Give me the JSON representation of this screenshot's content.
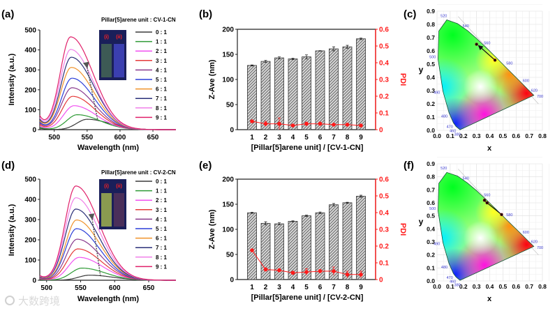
{
  "figure": {
    "watermark": "大数跨境",
    "panel_labels": [
      "(a)",
      "(b)",
      "(c)",
      "(d)",
      "(e)",
      "(f)"
    ]
  },
  "chart_data": [
    {
      "id": "a",
      "type": "line",
      "title": "Pillar[5]arene unit : CV-1-CN",
      "xlabel": "Wavelength (nm)",
      "ylabel": "Intensity (a.u.)",
      "xlim": [
        478,
        685
      ],
      "ylim": [
        0,
        500
      ],
      "xticks": [
        500,
        550,
        600,
        650
      ],
      "yticks": [
        0,
        100,
        200,
        300,
        400,
        500
      ],
      "inset_labels": [
        "(i)",
        "(ii)"
      ],
      "series": [
        {
          "name": "0 : 1",
          "color": "#3a3a3a",
          "peak_wavelength": 550,
          "peak_intensity": 52,
          "tail": 8
        },
        {
          "name": "1 : 1",
          "color": "#2e9a35",
          "peak_wavelength": 535,
          "peak_intensity": 75,
          "tail": 12
        },
        {
          "name": "2 : 1",
          "color": "#f050f0",
          "peak_wavelength": 530,
          "peak_intensity": 120,
          "tail": 18
        },
        {
          "name": "3 : 1",
          "color": "#e53a3a",
          "peak_wavelength": 528,
          "peak_intensity": 167,
          "tail": 24
        },
        {
          "name": "4 : 1",
          "color": "#8a3a8e",
          "peak_wavelength": 527,
          "peak_intensity": 210,
          "tail": 30
        },
        {
          "name": "5 : 1",
          "color": "#2c3fd8",
          "peak_wavelength": 527,
          "peak_intensity": 258,
          "tail": 36
        },
        {
          "name": "6 : 1",
          "color": "#f0922a",
          "peak_wavelength": 526,
          "peak_intensity": 312,
          "tail": 42
        },
        {
          "name": "7 : 1",
          "color": "#2a2f78",
          "peak_wavelength": 526,
          "peak_intensity": 363,
          "tail": 48
        },
        {
          "name": "8 : 1",
          "color": "#f080e8",
          "peak_wavelength": 525,
          "peak_intensity": 402,
          "tail": 55
        },
        {
          "name": "9 : 1",
          "color": "#e0206a",
          "peak_wavelength": 525,
          "peak_intensity": 465,
          "tail": 65
        }
      ]
    },
    {
      "id": "b",
      "type": "bar",
      "xlabel": "[Pillar[5]arene unit] / [CV-1-CN]",
      "ylabel": "Z-Ave (nm)",
      "y2label": "PDI",
      "categories": [
        "1",
        "2",
        "3",
        "4",
        "5",
        "6",
        "7",
        "8",
        "9"
      ],
      "ylim": [
        0,
        200
      ],
      "yticks": [
        0,
        50,
        100,
        150,
        200
      ],
      "y2lim": [
        0,
        0.6
      ],
      "y2ticks": [
        "0",
        "0.1",
        "0.2",
        "0.3",
        "0.4",
        "0.5",
        "0.6"
      ],
      "z_ave": [
        128,
        136,
        143,
        141,
        145,
        157,
        161,
        165,
        181
      ],
      "z_ave_err": [
        1,
        2,
        2,
        1.5,
        4,
        0.5,
        4,
        3,
        1.5
      ],
      "pdi": [
        0.05,
        0.035,
        0.035,
        0.025,
        0.035,
        0.035,
        0.03,
        0.03,
        0.025
      ],
      "pdi_err": [
        0.005,
        0.015,
        0.035,
        0.005,
        0.01,
        0.01,
        0.005,
        0.005,
        0.005
      ],
      "pdi_color": "#ff1a1a"
    },
    {
      "id": "c",
      "type": "scatter",
      "title": "CIE 1931 chromaticity",
      "xlabel": "x",
      "ylabel": "y",
      "xlim": [
        0,
        0.8
      ],
      "ylim": [
        0,
        0.9
      ],
      "xticks": [
        "0.0",
        "0.1",
        "0.2",
        "0.3",
        "0.4",
        "0.5",
        "0.6",
        "0.7",
        "0.8"
      ],
      "yticks": [
        "0.0",
        "0.1",
        "0.2",
        "0.3",
        "0.4",
        "0.5",
        "0.6",
        "0.7",
        "0.8",
        "0.9"
      ],
      "wavelength_labels": [
        "380",
        "460",
        "470",
        "480",
        "490",
        "500",
        "520",
        "540",
        "560",
        "580",
        "600",
        "620",
        "700"
      ],
      "points": [
        [
          0.44,
          0.53
        ],
        [
          0.3,
          0.65
        ]
      ],
      "arrow": true
    },
    {
      "id": "d",
      "type": "line",
      "title": "Pillar[5]arene unit : CV-2-CN",
      "xlabel": "Wavelength (nm)",
      "ylabel": "Intensity (a.u.)",
      "xlim": [
        490,
        690
      ],
      "ylim": [
        0,
        500
      ],
      "xticks": [
        500,
        550,
        600,
        650
      ],
      "yticks": [
        0,
        100,
        200,
        300,
        400,
        500
      ],
      "inset_labels": [
        "(i)",
        "(ii)"
      ],
      "series": [
        {
          "name": "0 : 1",
          "color": "#3a3a3a",
          "peak_wavelength": 563,
          "peak_intensity": 25,
          "tail": 3
        },
        {
          "name": "1 : 1",
          "color": "#2e9a35",
          "peak_wavelength": 552,
          "peak_intensity": 60,
          "tail": 5
        },
        {
          "name": "2 : 1",
          "color": "#f050f0",
          "peak_wavelength": 548,
          "peak_intensity": 113,
          "tail": 8
        },
        {
          "name": "3 : 1",
          "color": "#e53a3a",
          "peak_wavelength": 546,
          "peak_intensity": 155,
          "tail": 10
        },
        {
          "name": "4 : 1",
          "color": "#8a3a8e",
          "peak_wavelength": 545,
          "peak_intensity": 203,
          "tail": 12
        },
        {
          "name": "5 : 1",
          "color": "#2c3fd8",
          "peak_wavelength": 544,
          "peak_intensity": 255,
          "tail": 14
        },
        {
          "name": "6 : 1",
          "color": "#f0922a",
          "peak_wavelength": 544,
          "peak_intensity": 298,
          "tail": 16
        },
        {
          "name": "7 : 1",
          "color": "#2a2f78",
          "peak_wavelength": 543,
          "peak_intensity": 352,
          "tail": 18
        },
        {
          "name": "8 : 1",
          "color": "#f080e8",
          "peak_wavelength": 543,
          "peak_intensity": 408,
          "tail": 20
        },
        {
          "name": "9 : 1",
          "color": "#e0206a",
          "peak_wavelength": 543,
          "peak_intensity": 466,
          "tail": 22
        }
      ]
    },
    {
      "id": "e",
      "type": "bar",
      "xlabel": "[Pillar[5]arene unit] / [CV-2-CN]",
      "ylabel": "Z-Ave (nm)",
      "y2label": "PDI",
      "categories": [
        "1",
        "2",
        "3",
        "4",
        "5",
        "6",
        "7",
        "8",
        "9"
      ],
      "ylim": [
        0,
        200
      ],
      "yticks": [
        0,
        50,
        100,
        150,
        200
      ],
      "y2lim": [
        0,
        0.6
      ],
      "y2ticks": [
        "0",
        "0.1",
        "0.2",
        "0.3",
        "0.4",
        "0.5",
        "0.6"
      ],
      "z_ave": [
        133,
        112,
        111,
        116,
        127,
        133,
        149,
        153,
        166
      ],
      "z_ave_err": [
        1,
        3,
        2,
        1,
        1.5,
        1.5,
        2.5,
        1,
        2
      ],
      "pdi": [
        0.175,
        0.06,
        0.055,
        0.04,
        0.045,
        0.05,
        0.05,
        0.03,
        0.03
      ],
      "pdi_err": [
        0.005,
        0.01,
        0.01,
        0.01,
        0.02,
        0.01,
        0.025,
        0.02,
        0.02
      ],
      "pdi_color": "#ff1a1a"
    },
    {
      "id": "f",
      "type": "scatter",
      "title": "CIE 1931 chromaticity",
      "xlabel": "x",
      "ylabel": "y",
      "xlim": [
        0,
        0.8
      ],
      "ylim": [
        0,
        0.9
      ],
      "xticks": [
        "0.0",
        "0.1",
        "0.2",
        "0.3",
        "0.4",
        "0.5",
        "0.6",
        "0.7",
        "0.8"
      ],
      "yticks": [
        "0.0",
        "0.1",
        "0.2",
        "0.3",
        "0.4",
        "0.5",
        "0.6",
        "0.7",
        "0.8",
        "0.9"
      ],
      "wavelength_labels": [
        "380",
        "460",
        "470",
        "480",
        "490",
        "500",
        "520",
        "540",
        "560",
        "580",
        "600",
        "620",
        "700"
      ],
      "points": [
        [
          0.49,
          0.51
        ],
        [
          0.38,
          0.6
        ],
        [
          0.36,
          0.62
        ]
      ],
      "arrow": false
    }
  ]
}
